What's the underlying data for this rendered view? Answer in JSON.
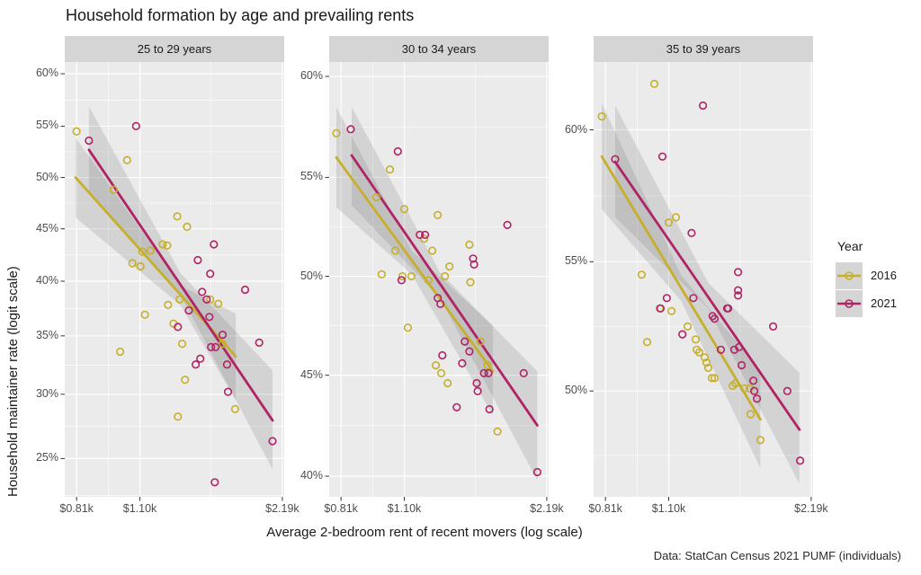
{
  "title": "Household formation by age and prevailing rents",
  "y_axis_title": "Household maintainer rate (logit scale)",
  "x_axis_title": "Average 2-bedroom rent of recent movers (log scale)",
  "caption": "Data: StatCan Census 2021 PUMF (individuals)",
  "legend": {
    "title": "Year",
    "items": [
      {
        "label": "2016",
        "color": "#C6AF2C"
      },
      {
        "label": "2021",
        "color": "#B02365"
      }
    ]
  },
  "colors": {
    "panel_bg": "#EBEBEB",
    "strip_bg": "#D5D5D5",
    "grid": "#FFFFFF",
    "ribbon": "#808080",
    "tick": "#333333",
    "tick_text": "#4D4D4D"
  },
  "chart_data": {
    "type": "scatter",
    "x_scale": "log",
    "y_scale": "logit",
    "x_ticks": [
      {
        "value": 810,
        "label": "$0.81k"
      },
      {
        "value": 1100,
        "label": "$1.10k"
      },
      {
        "value": 2190,
        "label": "$2.19k"
      }
    ],
    "panels": [
      {
        "facet": "25 to 29 years",
        "x_domain": [
          765,
          2210
        ],
        "y_domain_pct": [
          22.3,
          61.1
        ],
        "y_ticks_pct": [
          60,
          55,
          50,
          45,
          40,
          35,
          30,
          25
        ],
        "series": [
          {
            "name": "2016",
            "color": "#C6AF2C",
            "points": [
              [
                810,
                54.5
              ],
              [
                1034,
                51.7
              ],
              [
                969,
                48.8
              ],
              [
                1318,
                46.2
              ],
              [
                1382,
                45.2
              ],
              [
                1061,
                41.7
              ],
              [
                1103,
                41.4
              ],
              [
                1113,
                42.8
              ],
              [
                1157,
                42.9
              ],
              [
                1228,
                43.5
              ],
              [
                1255,
                43.4
              ],
              [
                1545,
                38.3
              ],
              [
                1606,
                37.9
              ],
              [
                1260,
                37.8
              ],
              [
                1333,
                38.3
              ],
              [
                1127,
                36.9
              ],
              [
                1294,
                36.1
              ],
              [
                1641,
                34.3
              ],
              [
                1350,
                34.3
              ],
              [
                1000,
                33.6
              ],
              [
                1368,
                31.2
              ],
              [
                1743,
                28.8
              ],
              [
                1322,
                28.2
              ]
            ],
            "trend": [
              [
                806,
                50.0
              ],
              [
                1748,
                33.2
              ]
            ],
            "ribbon": {
              "x": [
                806,
                1337,
                1748
              ],
              "upper": [
                53.9,
                39.6,
                37.0
              ],
              "lower": [
                46.1,
                37.8,
                29.5
              ]
            }
          },
          {
            "name": "2021",
            "color": "#B02365",
            "points": [
              [
                860,
                53.6
              ],
              [
                1080,
                55.0
              ],
              [
                1455,
                42.0
              ],
              [
                1573,
                43.5
              ],
              [
                1545,
                40.7
              ],
              [
                1829,
                39.2
              ],
              [
                1486,
                39.0
              ],
              [
                1519,
                38.3
              ],
              [
                1394,
                37.3
              ],
              [
                1322,
                35.8
              ],
              [
                1539,
                36.7
              ],
              [
                1641,
                35.1
              ],
              [
                1552,
                34.0
              ],
              [
                1586,
                34.0
              ],
              [
                1958,
                34.4
              ],
              [
                1473,
                33.0
              ],
              [
                1441,
                32.5
              ],
              [
                1676,
                32.5
              ],
              [
                1684,
                30.2
              ],
              [
                2089,
                26.3
              ],
              [
                1580,
                23.3
              ]
            ],
            "trend": [
              [
                860,
                52.7
              ],
              [
                2089,
                27.9
              ]
            ],
            "ribbon": {
              "x": [
                860,
                1337,
                2089
              ],
              "upper": [
                56.9,
                40.8,
                32.0
              ],
              "lower": [
                48.5,
                38.8,
                24.2
              ]
            }
          }
        ]
      },
      {
        "facet": "30 to 34 years",
        "x_domain": [
          765,
          2210
        ],
        "y_domain_pct": [
          39.0,
          60.7
        ],
        "y_ticks_pct": [
          60,
          55,
          50,
          45,
          40
        ],
        "series": [
          {
            "name": "2016",
            "color": "#C6AF2C",
            "points": [
              [
                792,
                57.2
              ],
              [
                1026,
                55.4
              ],
              [
                961,
                54.0
              ],
              [
                1100,
                53.4
              ],
              [
                1293,
                53.1
              ],
              [
                1053,
                51.3
              ],
              [
                986,
                50.1
              ],
              [
                1090,
                50.0
              ],
              [
                1139,
                50.0
              ],
              [
                1211,
                51.9
              ],
              [
                1259,
                51.3
              ],
              [
                1507,
                51.6
              ],
              [
                1338,
                50.0
              ],
              [
                1368,
                50.5
              ],
              [
                1514,
                49.7
              ],
              [
                1237,
                49.8
              ],
              [
                1589,
                46.7
              ],
              [
                1281,
                45.5
              ],
              [
                1315,
                45.1
              ],
              [
                1119,
                47.4
              ],
              [
                1356,
                44.6
              ],
              [
                1645,
                45.5
              ],
              [
                1726,
                42.2
              ]
            ],
            "trend": [
              [
                792,
                56.0
              ],
              [
                1688,
                45.2
              ]
            ],
            "ribbon": {
              "x": [
                792,
                1140,
                1688
              ],
              "upper": [
                58.5,
                51.3,
                47.5
              ],
              "lower": [
                53.5,
                50.1,
                43.0
              ]
            }
          },
          {
            "name": "2021",
            "color": "#B02365",
            "points": [
              [
                849,
                57.4
              ],
              [
                1066,
                56.3
              ],
              [
                1810,
                52.6
              ],
              [
                1185,
                52.1
              ],
              [
                1216,
                52.1
              ],
              [
                1534,
                50.9
              ],
              [
                1541,
                50.6
              ],
              [
                1085,
                49.8
              ],
              [
                1293,
                48.9
              ],
              [
                1310,
                48.6
              ],
              [
                1474,
                46.7
              ],
              [
                1507,
                46.2
              ],
              [
                1322,
                46.0
              ],
              [
                1455,
                45.6
              ],
              [
                1617,
                45.1
              ],
              [
                1652,
                45.1
              ],
              [
                1959,
                45.1
              ],
              [
                1561,
                44.6
              ],
              [
                1568,
                44.2
              ],
              [
                1417,
                43.4
              ],
              [
                1660,
                43.3
              ],
              [
                2092,
                40.2
              ]
            ],
            "trend": [
              [
                853,
                56.1
              ],
              [
                2092,
                42.5
              ]
            ],
            "ribbon": {
              "x": [
                853,
                1307,
                2092
              ],
              "upper": [
                58.5,
                50.2,
                45.2
              ],
              "lower": [
                53.6,
                48.9,
                39.8
              ]
            }
          }
        ]
      },
      {
        "facet": "35 to 39 years",
        "x_domain": [
          765,
          2210
        ],
        "y_domain_pct": [
          45.9,
          62.5
        ],
        "y_ticks_pct": [
          60,
          55,
          50
        ],
        "series": [
          {
            "name": "2016",
            "color": "#C6AF2C",
            "points": [
              [
                1026,
                61.7
              ],
              [
                796,
                60.5
              ],
              [
                1100,
                56.5
              ],
              [
                1139,
                56.7
              ],
              [
                965,
                54.5
              ],
              [
                1053,
                53.2
              ],
              [
                1115,
                53.1
              ],
              [
                1205,
                52.5
              ],
              [
                991,
                51.9
              ],
              [
                1253,
                52.0
              ],
              [
                1259,
                51.6
              ],
              [
                1275,
                51.5
              ],
              [
                1309,
                51.3
              ],
              [
                1320,
                51.1
              ],
              [
                1332,
                50.9
              ],
              [
                1355,
                50.5
              ],
              [
                1373,
                50.5
              ],
              [
                1498,
                50.2
              ],
              [
                1585,
                50.1
              ],
              [
                1627,
                50.1
              ],
              [
                1518,
                50.3
              ],
              [
                1634,
                49.1
              ],
              [
                1713,
                48.1
              ]
            ],
            "trend": [
              [
                796,
                59.0
              ],
              [
                1713,
                48.9
              ]
            ],
            "ribbon": {
              "x": [
                796,
                1167,
                1713
              ],
              "upper": [
                61.0,
                54.5,
                50.8
              ],
              "lower": [
                57.0,
                53.5,
                47.0
              ]
            }
          },
          {
            "name": "2021",
            "color": "#B02365",
            "points": [
              [
                1298,
                60.9
              ],
              [
                1067,
                59.0
              ],
              [
                849,
                58.9
              ],
              [
                1228,
                56.1
              ],
              [
                1822,
                52.5
              ],
              [
                1538,
                54.6
              ],
              [
                1538,
                53.9
              ],
              [
                1538,
                53.7
              ],
              [
                1466,
                53.2
              ],
              [
                1360,
                52.9
              ],
              [
                1175,
                52.2
              ],
              [
                1057,
                53.2
              ],
              [
                1090,
                53.6
              ],
              [
                1239,
                53.6
              ],
              [
                1373,
                52.8
              ],
              [
                1459,
                53.2
              ],
              [
                1415,
                51.6
              ],
              [
                1511,
                51.6
              ],
              [
                1545,
                51.7
              ],
              [
                1565,
                51.0
              ],
              [
                1656,
                50.4
              ],
              [
                1663,
                50.0
              ],
              [
                1685,
                49.7
              ],
              [
                1952,
                50.0
              ],
              [
                2076,
                47.3
              ]
            ],
            "trend": [
              [
                849,
                58.8
              ],
              [
                2069,
                48.5
              ]
            ],
            "ribbon": {
              "x": [
                849,
                1330,
                2069
              ],
              "upper": [
                60.9,
                54.2,
                50.7
              ],
              "lower": [
                56.7,
                53.2,
                46.4
              ]
            }
          }
        ]
      }
    ]
  }
}
